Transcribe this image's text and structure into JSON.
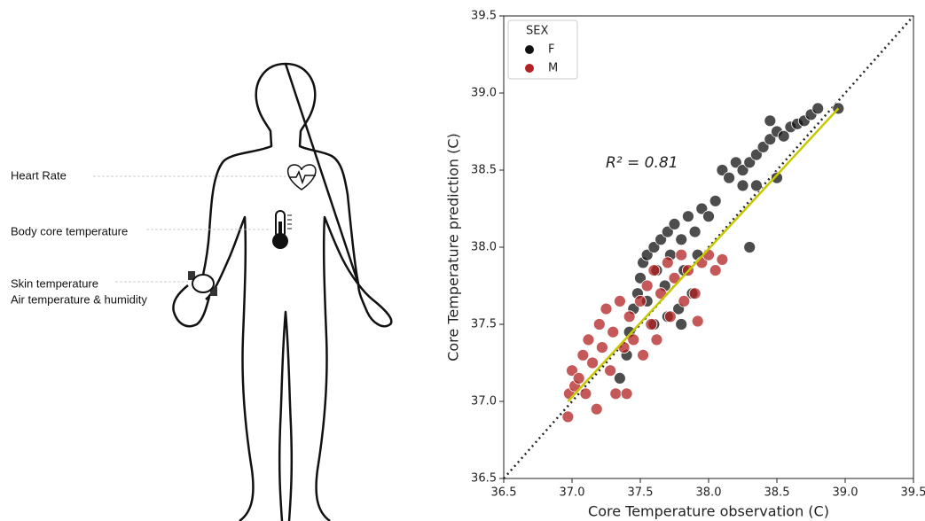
{
  "diagram": {
    "labels": [
      "Heart Rate",
      "Body core temperature",
      "Skin temperature",
      "Air temperature & humidity"
    ]
  },
  "chart_data": {
    "type": "scatter",
    "xlabel": "Core Temperature observation (C)",
    "ylabel": "Core Temperature prediction (C)",
    "annotation": "R² = 0.81",
    "legend_title": "SEX",
    "legend": "upper left",
    "xlim": [
      36.5,
      39.5
    ],
    "ylim": [
      36.5,
      39.5
    ],
    "xticks": [
      36.5,
      {
        "value": 37,
        "label": "37.0"
      },
      37.5,
      {
        "value": 38,
        "label": "38.0"
      },
      38.5,
      {
        "value": 39,
        "label": "39.0"
      },
      39.5
    ],
    "yticks": [
      36.5,
      {
        "value": 37,
        "label": "37.0"
      },
      37.5,
      {
        "value": 38,
        "label": "38.0"
      },
      38.5,
      {
        "value": 39,
        "label": "39.0"
      },
      39.5
    ],
    "series": [
      {
        "name": "F",
        "color": "#111111",
        "x": [
          37.35,
          37.4,
          37.42,
          37.45,
          37.48,
          37.5,
          37.52,
          37.55,
          37.55,
          37.6,
          37.6,
          37.62,
          37.65,
          37.68,
          37.7,
          37.7,
          37.72,
          37.75,
          37.78,
          37.8,
          37.8,
          37.82,
          37.85,
          37.88,
          37.9,
          37.92,
          37.95,
          38.0,
          38.05,
          38.1,
          38.15,
          38.2,
          38.25,
          38.3,
          38.3,
          38.35,
          38.4,
          38.45,
          38.5,
          38.5,
          38.55,
          38.6,
          38.65,
          38.7,
          38.75,
          38.8,
          38.95,
          38.45,
          38.35,
          38.25
        ],
        "values": [
          37.15,
          37.3,
          37.45,
          37.6,
          37.7,
          37.8,
          37.9,
          37.95,
          37.65,
          38.0,
          37.5,
          37.85,
          38.05,
          37.75,
          38.1,
          37.55,
          37.95,
          38.15,
          37.6,
          38.05,
          37.5,
          37.85,
          38.2,
          37.7,
          38.1,
          37.95,
          38.25,
          38.2,
          38.3,
          38.5,
          38.45,
          38.55,
          38.5,
          38.55,
          38.0,
          38.6,
          38.65,
          38.7,
          38.45,
          38.75,
          38.72,
          38.78,
          38.8,
          38.82,
          38.86,
          38.9,
          38.9,
          38.82,
          38.4,
          38.4
        ]
      },
      {
        "name": "M",
        "color": "#b22222",
        "x": [
          36.97,
          36.98,
          37.0,
          37.02,
          37.05,
          37.08,
          37.1,
          37.12,
          37.15,
          37.18,
          37.2,
          37.22,
          37.25,
          37.28,
          37.3,
          37.32,
          37.35,
          37.38,
          37.4,
          37.42,
          37.45,
          37.5,
          37.52,
          37.55,
          37.58,
          37.6,
          37.62,
          37.65,
          37.7,
          37.72,
          37.75,
          37.8,
          37.82,
          37.85,
          37.9,
          37.92,
          37.95,
          38.0,
          38.05,
          38.1
        ],
        "values": [
          36.9,
          37.05,
          37.2,
          37.1,
          37.15,
          37.3,
          37.05,
          37.4,
          37.25,
          36.95,
          37.5,
          37.35,
          37.6,
          37.2,
          37.45,
          37.05,
          37.65,
          37.35,
          37.05,
          37.55,
          37.4,
          37.65,
          37.3,
          37.75,
          37.5,
          37.85,
          37.4,
          37.7,
          37.9,
          37.55,
          37.8,
          37.95,
          37.65,
          37.85,
          37.7,
          37.52,
          37.9,
          37.95,
          37.85,
          37.92
        ]
      }
    ],
    "fit_line": {
      "color": "#c8c800",
      "x": [
        36.97,
        38.95
      ],
      "values": [
        37.0,
        38.9
      ]
    },
    "identity_line": {
      "color": "#222222",
      "x": [
        36.5,
        39.5
      ],
      "values": [
        36.5,
        39.5
      ]
    }
  }
}
